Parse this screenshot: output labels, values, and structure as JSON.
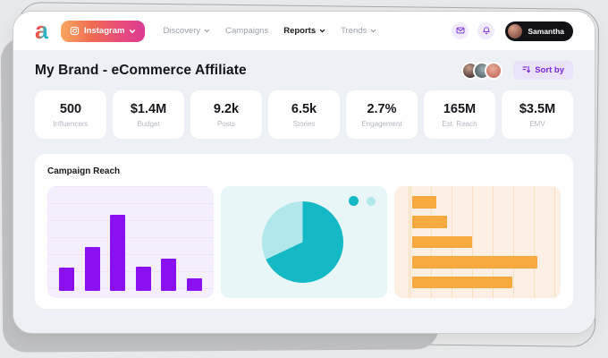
{
  "nav": {
    "logo_letter": "a",
    "platform_button": {
      "label": "Instagram"
    },
    "items": [
      {
        "label": "Discovery",
        "has_dropdown": true,
        "active": false
      },
      {
        "label": "Campaigns",
        "has_dropdown": false,
        "active": false
      },
      {
        "label": "Reports",
        "has_dropdown": true,
        "active": true
      },
      {
        "label": "Trends",
        "has_dropdown": true,
        "active": false
      }
    ],
    "user": {
      "name": "Samantha"
    }
  },
  "header": {
    "title": "My Brand - eCommerce Affiliate",
    "sort_button_label": "Sort by",
    "avatar_count": 3
  },
  "stats": [
    {
      "value": "500",
      "label": "Influencers"
    },
    {
      "value": "$1.4M",
      "label": "Budget"
    },
    {
      "value": "9.2k",
      "label": "Posts"
    },
    {
      "value": "6.5k",
      "label": "Stories"
    },
    {
      "value": "2.7%",
      "label": "Engagement"
    },
    {
      "value": "165M",
      "label": "Est. Reach"
    },
    {
      "value": "$3.5M",
      "label": "EMV"
    }
  ],
  "campaign_section": {
    "title": "Campaign Reach"
  },
  "chart_data": [
    {
      "type": "bar",
      "orientation": "vertical",
      "title": "campaign reach bar chart",
      "values": [
        26,
        49,
        85,
        27,
        36,
        14
      ],
      "ylim": [
        0,
        104
      ],
      "bar_color": "#8a10f0",
      "grid": true,
      "legend_position": "none"
    },
    {
      "type": "pie",
      "title": "campaign reach pie chart",
      "values": [
        68,
        32
      ],
      "colors": [
        "#15b9c5",
        "#b2e7ec"
      ],
      "legend_position": "top-right"
    },
    {
      "type": "bar",
      "orientation": "horizontal",
      "title": "campaign reach horizontal bar chart",
      "values": [
        19,
        28,
        48,
        100,
        80
      ],
      "xlim": [
        0,
        100
      ],
      "bar_color": "#f6a93e",
      "grid": true,
      "legend_position": "none"
    }
  ],
  "colors": {
    "accent_purple": "#7728e0",
    "instagram_gradient_start": "#f7a95f",
    "instagram_gradient_end": "#da3a93",
    "content_bg": "#edf0f4",
    "bar_purple": "#8a10f0",
    "pie_dark_teal": "#15b9c5",
    "pie_light_teal": "#b2e7ec",
    "bar_orange": "#f6a93e"
  }
}
